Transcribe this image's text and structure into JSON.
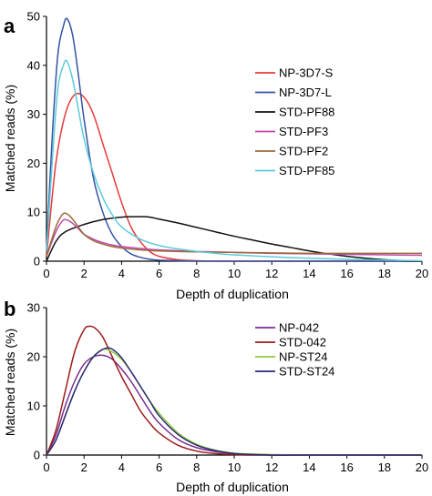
{
  "chart_data": [
    {
      "panel": "a",
      "type": "line",
      "xlabel": "Depth of duplication",
      "ylabel": "Matched reads (%)",
      "xlim": [
        0,
        20
      ],
      "ylim": [
        0,
        50
      ],
      "xticks": [
        "0",
        "2",
        "4",
        "6",
        "8",
        "10",
        "12",
        "14",
        "16",
        "18",
        "20"
      ],
      "yticks": [
        "0",
        "10",
        "20",
        "30",
        "40",
        "50"
      ],
      "legend_position": "right",
      "series": [
        {
          "name": "NP-3D7-S",
          "color": "#e8393b",
          "x": [
            0,
            0.5,
            1,
            1.5,
            2,
            2.5,
            3,
            3.5,
            4,
            4.5,
            5,
            5.5,
            6,
            7,
            8,
            9,
            10,
            12,
            14,
            16,
            18,
            20
          ],
          "y": [
            1,
            20,
            30,
            34,
            33.5,
            30,
            24,
            18,
            12,
            7,
            4,
            2,
            1,
            0.3,
            0.1,
            0,
            0,
            0,
            0,
            0,
            0,
            0
          ]
        },
        {
          "name": "NP-3D7-L",
          "color": "#3553a5",
          "x": [
            0,
            0.3,
            0.6,
            0.9,
            1.1,
            1.4,
            1.7,
            2,
            2.5,
            3,
            3.5,
            4,
            4.5,
            5,
            5.5,
            6,
            7,
            8,
            10,
            12,
            14,
            16,
            18,
            20
          ],
          "y": [
            2,
            25,
            42,
            48,
            49.5,
            46,
            38,
            29,
            17,
            10,
            5.5,
            3,
            1.5,
            0.8,
            0.4,
            0.2,
            0.1,
            0,
            0,
            0,
            0,
            0,
            0,
            0
          ]
        },
        {
          "name": "STD-PF88",
          "color": "#111111",
          "x": [
            0,
            0.5,
            1,
            2,
            3,
            4,
            5,
            5.5,
            6,
            7,
            8,
            9,
            10,
            11,
            12,
            13,
            14,
            15,
            16,
            17,
            18,
            19,
            20
          ],
          "y": [
            0,
            4,
            6,
            7.5,
            8.5,
            9,
            9.1,
            9,
            8.6,
            7.8,
            6.9,
            6,
            5.1,
            4.3,
            3.5,
            2.8,
            2.1,
            1.5,
            1,
            0.6,
            0.3,
            0.1,
            0
          ]
        },
        {
          "name": "STD-PF3",
          "color": "#c04ba8",
          "x": [
            0,
            0.5,
            0.8,
            1,
            1.3,
            1.6,
            2,
            2.5,
            3,
            3.5,
            4,
            5,
            6,
            8,
            10,
            12,
            14,
            16,
            18,
            20
          ],
          "y": [
            1,
            6,
            8,
            8.5,
            8,
            7,
            5.5,
            4.5,
            3.8,
            3.3,
            3,
            2.6,
            2.3,
            2,
            1.8,
            1.6,
            1.5,
            1.4,
            1.3,
            1.2
          ]
        },
        {
          "name": "STD-PF2",
          "color": "#9b6a3c",
          "x": [
            0,
            0.5,
            0.8,
            1,
            1.3,
            1.6,
            2,
            2.5,
            3,
            3.5,
            4,
            5,
            6,
            8,
            10,
            12,
            14,
            16,
            18,
            20
          ],
          "y": [
            1,
            7,
            9.3,
            9.8,
            9,
            7.5,
            5.5,
            4.2,
            3.5,
            3,
            2.7,
            2.3,
            2.1,
            1.9,
            1.8,
            1.7,
            1.6,
            1.6,
            1.6,
            1.6
          ]
        },
        {
          "name": "STD-PF85",
          "color": "#5ccbdb",
          "x": [
            0,
            0.3,
            0.6,
            0.9,
            1.1,
            1.4,
            1.7,
            2,
            2.5,
            3,
            3.5,
            4,
            5,
            6,
            7,
            8,
            9,
            10,
            12,
            14,
            16,
            18,
            20
          ],
          "y": [
            2,
            20,
            35,
            40,
            40.8,
            37,
            31,
            25,
            18,
            13,
            9.5,
            7,
            4.5,
            3.2,
            2.5,
            2,
            1.6,
            1.3,
            0.9,
            0.6,
            0.4,
            0.2,
            0.1
          ]
        }
      ]
    },
    {
      "panel": "b",
      "type": "line",
      "xlabel": "Depth of duplication",
      "ylabel": "Matched reads (%)",
      "xlim": [
        0,
        20
      ],
      "ylim": [
        0,
        30
      ],
      "xticks": [
        "0",
        "2",
        "4",
        "6",
        "8",
        "10",
        "12",
        "14",
        "16",
        "18",
        "20"
      ],
      "yticks": [
        "0",
        "10",
        "20",
        "30"
      ],
      "legend_position": "right",
      "series": [
        {
          "name": "NP-042",
          "color": "#7b2d8e",
          "x": [
            0,
            0.5,
            1,
            1.5,
            2,
            2.5,
            3,
            3.5,
            4,
            4.5,
            5,
            5.5,
            6,
            7,
            8,
            9,
            10,
            11,
            12,
            14,
            16,
            18,
            20
          ],
          "y": [
            0,
            4,
            10,
            15,
            18.5,
            20,
            20.3,
            19.5,
            17.5,
            15,
            12,
            9,
            6.5,
            3.2,
            1.5,
            0.7,
            0.3,
            0.1,
            0,
            0,
            0,
            0,
            0
          ]
        },
        {
          "name": "STD-042",
          "color": "#9b1b1b",
          "x": [
            0,
            0.5,
            1,
            1.5,
            2,
            2.3,
            2.6,
            3,
            3.5,
            4,
            4.5,
            5,
            5.5,
            6,
            7,
            8,
            9,
            10,
            11,
            12,
            14,
            16,
            18,
            20
          ],
          "y": [
            0,
            5,
            13,
            21,
            25.5,
            26.2,
            25.8,
            24,
            20,
            16,
            12.5,
            9,
            6.5,
            4.5,
            2,
            0.8,
            0.3,
            0.1,
            0,
            0,
            0,
            0,
            0,
            0
          ]
        },
        {
          "name": "NP-ST24",
          "color": "#8fcc3b",
          "x": [
            0,
            0.5,
            1,
            1.5,
            2,
            2.5,
            3,
            3.5,
            4,
            4.5,
            5,
            5.5,
            6,
            7,
            8,
            9,
            10,
            11,
            12,
            14,
            16,
            18,
            20
          ],
          "y": [
            0,
            3,
            8,
            13,
            17,
            20,
            21.5,
            21,
            19.5,
            17,
            14,
            11,
            8.5,
            4.5,
            2.2,
            1,
            0.4,
            0.2,
            0.1,
            0,
            0,
            0,
            0
          ]
        },
        {
          "name": "STD-ST24",
          "color": "#2a2a7a",
          "x": [
            0,
            0.5,
            1,
            1.5,
            2,
            2.5,
            3,
            3.3,
            3.6,
            4,
            4.5,
            5,
            5.5,
            6,
            7,
            8,
            9,
            10,
            11,
            12,
            14,
            16,
            18,
            20
          ],
          "y": [
            0,
            3,
            8,
            13,
            17,
            20,
            21.5,
            21.8,
            21.3,
            19.8,
            17,
            14,
            11,
            8,
            4.2,
            2,
            0.9,
            0.3,
            0.1,
            0,
            0,
            0,
            0,
            0
          ]
        }
      ]
    }
  ]
}
